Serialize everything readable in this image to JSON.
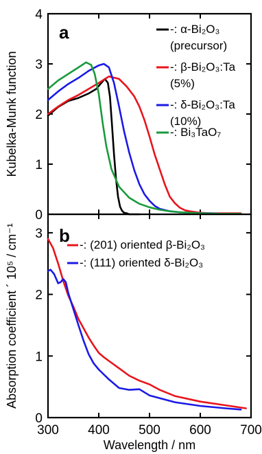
{
  "figure": {
    "ylabel_a": "Kubelka-Munk function",
    "ylabel_b": "Absorption coefficient ´ 10⁵ / cm⁻¹",
    "xlabel": "Wavelength / nm"
  },
  "chart_data": [
    {
      "panel": "a",
      "type": "line",
      "xlabel": "Wavelength / nm",
      "ylabel": "Kubelka-Munk function",
      "xlim": [
        300,
        700
      ],
      "ylim": [
        0,
        4
      ],
      "x_ticks": [
        300,
        400,
        500,
        600,
        700
      ],
      "y_ticks": [
        0,
        1,
        2,
        3,
        4
      ],
      "grid": false,
      "legend_position": "top-right",
      "series": [
        {
          "name": "-: α-Bi₂O₃ (precursor)",
          "legend_lines": [
            "-: α-Bi₂O₃",
            "(precursor)"
          ],
          "color": "#000000",
          "x": [
            300,
            320,
            340,
            360,
            380,
            395,
            405,
            412,
            418,
            422,
            426,
            430,
            434,
            438,
            442,
            446,
            450,
            455,
            460,
            470,
            480
          ],
          "y": [
            1.97,
            2.14,
            2.26,
            2.32,
            2.41,
            2.5,
            2.62,
            2.7,
            2.62,
            2.35,
            1.8,
            1.2,
            0.7,
            0.35,
            0.15,
            0.07,
            0.03,
            0.02,
            0.0,
            0.0,
            0.0
          ]
        },
        {
          "name": "-: β-Bi₂O₃:Ta (5%)",
          "legend_lines": [
            "-: β-Bi₂O₃:Ta",
            "(5%)"
          ],
          "color": "#e8141c",
          "x": [
            300,
            320,
            340,
            360,
            380,
            400,
            420,
            440,
            455,
            470,
            480,
            490,
            500,
            510,
            520,
            530,
            540,
            550,
            560,
            570,
            580,
            600,
            620,
            640,
            660,
            680
          ],
          "y": [
            2.0,
            2.15,
            2.28,
            2.38,
            2.5,
            2.62,
            2.75,
            2.7,
            2.55,
            2.35,
            2.15,
            1.88,
            1.55,
            1.2,
            0.9,
            0.6,
            0.35,
            0.22,
            0.13,
            0.08,
            0.06,
            0.03,
            0.02,
            0.02,
            0.02,
            0.02
          ]
        },
        {
          "name": "-: δ-Bi₂O₃:Ta (10%)",
          "legend_lines": [
            "-: δ-Bi₂O₃:Ta",
            "(10%)"
          ],
          "color": "#1a1ae6",
          "x": [
            300,
            320,
            340,
            360,
            380,
            400,
            410,
            420,
            430,
            440,
            450,
            460,
            470,
            480,
            490,
            500,
            510,
            520,
            540,
            560,
            580,
            600,
            620,
            640,
            660,
            680
          ],
          "y": [
            2.28,
            2.45,
            2.6,
            2.72,
            2.86,
            2.97,
            3.0,
            2.93,
            2.62,
            2.15,
            1.65,
            1.23,
            0.88,
            0.6,
            0.4,
            0.27,
            0.17,
            0.11,
            0.06,
            0.04,
            0.03,
            0.02,
            0.02,
            0.01,
            0.01,
            0.01
          ]
        },
        {
          "name": "-: Bi₃TaO₇",
          "legend_lines": [
            "-: Bi₃TaO₇"
          ],
          "color": "#1a9a3c",
          "x": [
            300,
            320,
            340,
            360,
            375,
            385,
            392,
            400,
            408,
            415,
            425,
            440,
            460,
            480,
            500,
            520,
            540,
            560,
            580,
            600,
            640,
            680
          ],
          "y": [
            2.5,
            2.67,
            2.8,
            2.93,
            3.03,
            2.98,
            2.8,
            2.4,
            1.8,
            1.35,
            0.9,
            0.55,
            0.33,
            0.21,
            0.14,
            0.09,
            0.06,
            0.04,
            0.03,
            0.02,
            0.01,
            0.01
          ]
        }
      ]
    },
    {
      "panel": "b",
      "type": "line",
      "xlabel": "Wavelength / nm",
      "ylabel": "Absorption coefficient ´ 10⁵ / cm⁻¹",
      "xlim": [
        300,
        700
      ],
      "ylim": [
        0,
        3.3
      ],
      "x_ticks": [
        300,
        400,
        500,
        600,
        700
      ],
      "y_ticks": [
        0,
        1,
        2,
        3
      ],
      "grid": false,
      "legend_position": "top-right",
      "series": [
        {
          "name": "-: (201) oriented β-Bi₂O₃",
          "legend_lines": [
            "-: (201) oriented β-Bi₂O₃"
          ],
          "color": "#e8141c",
          "x": [
            300,
            310,
            320,
            330,
            340,
            350,
            360,
            370,
            380,
            390,
            400,
            410,
            420,
            440,
            460,
            480,
            500,
            520,
            550,
            600,
            650,
            690
          ],
          "y": [
            2.9,
            2.75,
            2.5,
            2.22,
            1.98,
            1.8,
            1.6,
            1.45,
            1.3,
            1.17,
            1.05,
            0.98,
            0.92,
            0.8,
            0.68,
            0.6,
            0.54,
            0.45,
            0.35,
            0.26,
            0.2,
            0.15
          ]
        },
        {
          "name": "-: (111) oriented δ-Bi₂O₃",
          "legend_lines": [
            "-: (111) oriented δ-Bi₂O₃"
          ],
          "color": "#1a1ae6",
          "x": [
            300,
            305,
            312,
            320,
            325,
            330,
            335,
            340,
            350,
            360,
            370,
            380,
            390,
            400,
            420,
            440,
            460,
            480,
            500,
            550,
            600,
            650,
            680
          ],
          "y": [
            2.38,
            2.4,
            2.33,
            2.18,
            2.2,
            2.25,
            2.2,
            2.02,
            1.76,
            1.5,
            1.25,
            1.03,
            0.88,
            0.78,
            0.62,
            0.48,
            0.45,
            0.46,
            0.36,
            0.25,
            0.19,
            0.15,
            0.13
          ]
        }
      ]
    }
  ]
}
